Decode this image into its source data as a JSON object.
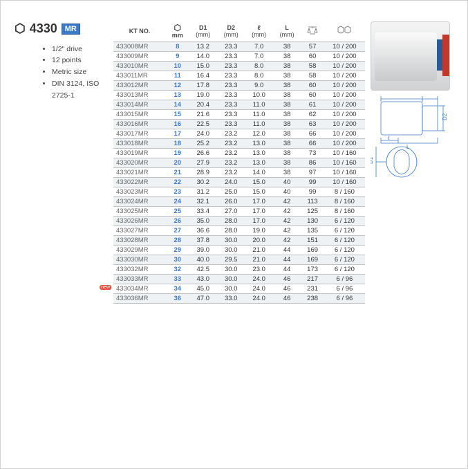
{
  "product": {
    "number": "4330",
    "badge": "MR"
  },
  "specs": [
    "1/2\" drive",
    "12 points",
    "Metric size",
    "DIN 3124, ISO 2725-1"
  ],
  "headers": {
    "kt": "KT NO.",
    "mm": "mm",
    "d1": "D1",
    "d2": "D2",
    "ell": "ℓ",
    "L": "L",
    "unit": "(mm)"
  },
  "rows": [
    {
      "kt": "433008MR",
      "mm": "8",
      "d1": "13.2",
      "d2": "23.3",
      "ell": "7.0",
      "L": "38",
      "w": "57",
      "p": "10 / 200",
      "shade": true
    },
    {
      "kt": "433009MR",
      "mm": "9",
      "d1": "14.0",
      "d2": "23.3",
      "ell": "7.0",
      "L": "38",
      "w": "60",
      "p": "10 / 200"
    },
    {
      "kt": "433010MR",
      "mm": "10",
      "d1": "15.0",
      "d2": "23.3",
      "ell": "8.0",
      "L": "38",
      "w": "58",
      "p": "10 / 200",
      "shade": true
    },
    {
      "kt": "433011MR",
      "mm": "11",
      "d1": "16.4",
      "d2": "23.3",
      "ell": "8.0",
      "L": "38",
      "w": "58",
      "p": "10 / 200"
    },
    {
      "kt": "433012MR",
      "mm": "12",
      "d1": "17.8",
      "d2": "23.3",
      "ell": "9.0",
      "L": "38",
      "w": "60",
      "p": "10 / 200",
      "shade": true
    },
    {
      "kt": "433013MR",
      "mm": "13",
      "d1": "19.0",
      "d2": "23.3",
      "ell": "10.0",
      "L": "38",
      "w": "60",
      "p": "10 / 200"
    },
    {
      "kt": "433014MR",
      "mm": "14",
      "d1": "20.4",
      "d2": "23.3",
      "ell": "11.0",
      "L": "38",
      "w": "61",
      "p": "10 / 200",
      "shade": true
    },
    {
      "kt": "433015MR",
      "mm": "15",
      "d1": "21.6",
      "d2": "23.3",
      "ell": "11.0",
      "L": "38",
      "w": "62",
      "p": "10 / 200"
    },
    {
      "kt": "433016MR",
      "mm": "16",
      "d1": "22.5",
      "d2": "23.3",
      "ell": "11.0",
      "L": "38",
      "w": "63",
      "p": "10 / 200",
      "shade": true
    },
    {
      "kt": "433017MR",
      "mm": "17",
      "d1": "24.0",
      "d2": "23.2",
      "ell": "12.0",
      "L": "38",
      "w": "66",
      "p": "10 / 200"
    },
    {
      "kt": "433018MR",
      "mm": "18",
      "d1": "25.2",
      "d2": "23.2",
      "ell": "13.0",
      "L": "38",
      "w": "66",
      "p": "10 / 200",
      "shade": true
    },
    {
      "kt": "433019MR",
      "mm": "19",
      "d1": "26.6",
      "d2": "23.2",
      "ell": "13.0",
      "L": "38",
      "w": "73",
      "p": "10 / 160"
    },
    {
      "kt": "433020MR",
      "mm": "20",
      "d1": "27.9",
      "d2": "23.2",
      "ell": "13.0",
      "L": "38",
      "w": "86",
      "p": "10 / 160",
      "shade": true
    },
    {
      "kt": "433021MR",
      "mm": "21",
      "d1": "28.9",
      "d2": "23.2",
      "ell": "14.0",
      "L": "38",
      "w": "97",
      "p": "10 / 160"
    },
    {
      "kt": "433022MR",
      "mm": "22",
      "d1": "30.2",
      "d2": "24.0",
      "ell": "15.0",
      "L": "40",
      "w": "99",
      "p": "10 / 160",
      "shade": true
    },
    {
      "kt": "433023MR",
      "mm": "23",
      "d1": "31.2",
      "d2": "25.0",
      "ell": "15.0",
      "L": "40",
      "w": "99",
      "p": "8 / 160"
    },
    {
      "kt": "433024MR",
      "mm": "24",
      "d1": "32.1",
      "d2": "26.0",
      "ell": "17.0",
      "L": "42",
      "w": "113",
      "p": "8 / 160",
      "shade": true
    },
    {
      "kt": "433025MR",
      "mm": "25",
      "d1": "33.4",
      "d2": "27.0",
      "ell": "17.0",
      "L": "42",
      "w": "125",
      "p": "8 / 160"
    },
    {
      "kt": "433026MR",
      "mm": "26",
      "d1": "35.0",
      "d2": "28.0",
      "ell": "17.0",
      "L": "42",
      "w": "130",
      "p": "6 / 120",
      "shade": true
    },
    {
      "kt": "433027MR",
      "mm": "27",
      "d1": "36.6",
      "d2": "28.0",
      "ell": "19.0",
      "L": "42",
      "w": "135",
      "p": "6 / 120"
    },
    {
      "kt": "433028MR",
      "mm": "28",
      "d1": "37.8",
      "d2": "30.0",
      "ell": "20.0",
      "L": "42",
      "w": "151",
      "p": "6 / 120",
      "shade": true
    },
    {
      "kt": "433029MR",
      "mm": "29",
      "d1": "39.0",
      "d2": "30.0",
      "ell": "21.0",
      "L": "44",
      "w": "169",
      "p": "6 / 120"
    },
    {
      "kt": "433030MR",
      "mm": "30",
      "d1": "40.0",
      "d2": "29.5",
      "ell": "21.0",
      "L": "44",
      "w": "169",
      "p": "6 / 120",
      "shade": true
    },
    {
      "kt": "433032MR",
      "mm": "32",
      "d1": "42.5",
      "d2": "30.0",
      "ell": "23.0",
      "L": "44",
      "w": "173",
      "p": "6 / 120"
    },
    {
      "kt": "433033MR",
      "mm": "33",
      "d1": "43.0",
      "d2": "30.0",
      "ell": "24.0",
      "L": "46",
      "w": "217",
      "p": "6 / 96",
      "shade": true
    },
    {
      "kt": "433034MR",
      "mm": "34",
      "d1": "45.0",
      "d2": "30.0",
      "ell": "24.0",
      "L": "46",
      "w": "231",
      "p": "6 / 96",
      "new": true
    },
    {
      "kt": "433036MR",
      "mm": "36",
      "d1": "47.0",
      "d2": "33.0",
      "ell": "24.0",
      "L": "46",
      "w": "238",
      "p": "6 / 96",
      "shade": true
    }
  ],
  "diagram_labels": {
    "d1": "D1",
    "d2": "D2",
    "ell": "ℓ",
    "L": "L"
  }
}
